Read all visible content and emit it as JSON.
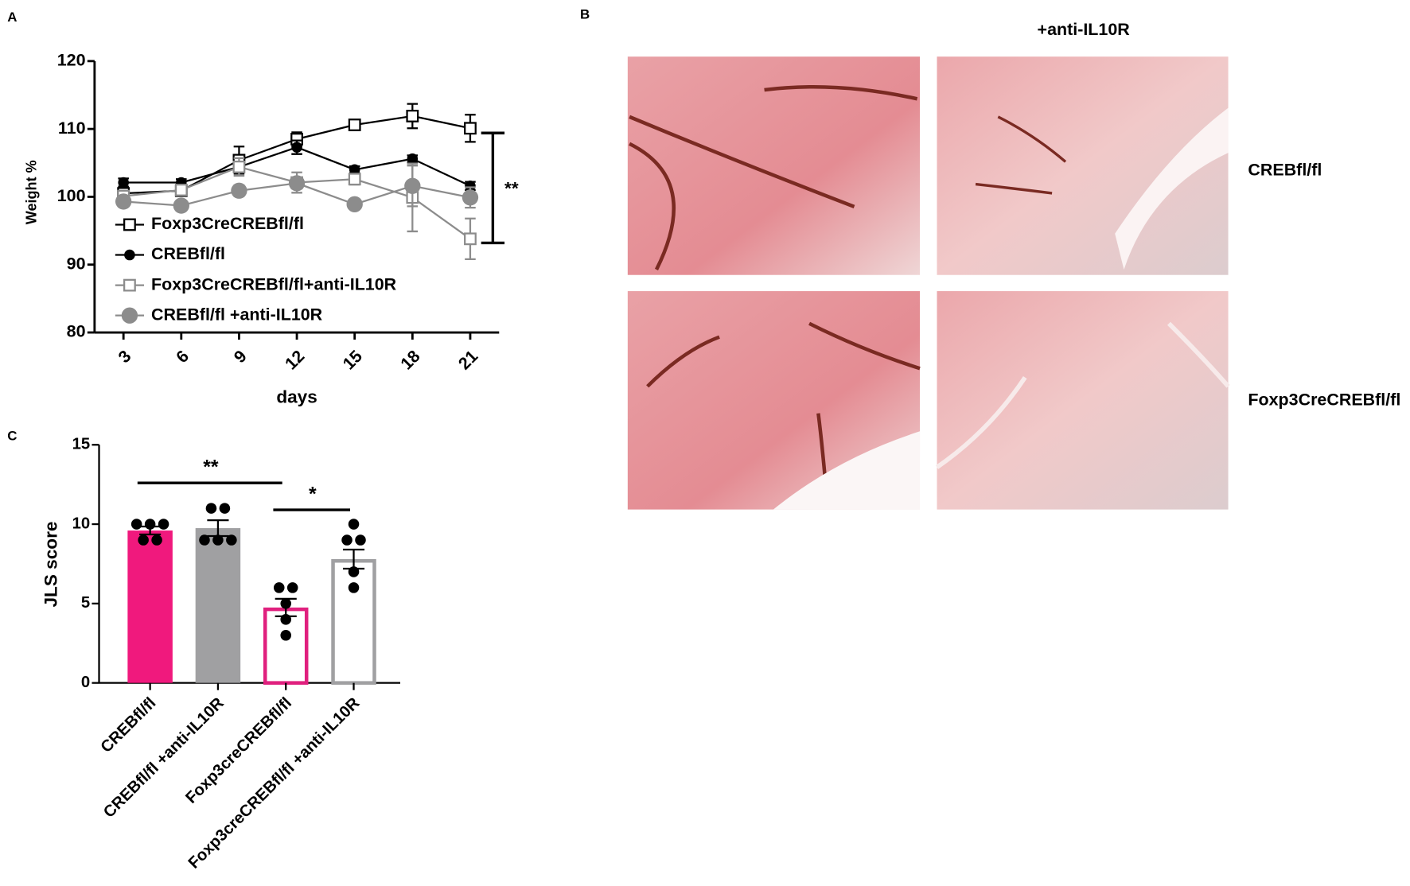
{
  "chart_data": [
    {
      "type": "line",
      "panel": "A",
      "ylabel": "Weight %",
      "xlabel": "days",
      "x": [
        3,
        6,
        9,
        12,
        15,
        18,
        21
      ],
      "xlim": [
        1.5,
        22.5
      ],
      "xticks": [
        3,
        6,
        9,
        12,
        15,
        18,
        21
      ],
      "ylim": [
        80,
        120
      ],
      "yticks": [
        80,
        90,
        100,
        110,
        120
      ],
      "legend": "lower left",
      "series": [
        {
          "name": "Foxp3CreCREBfl/fl",
          "color": "#000000",
          "marker": "open-square",
          "values": [
            100.5,
            100.9,
            105.4,
            108.5,
            110.6,
            111.9,
            110.1
          ],
          "errors": [
            0.5,
            0.6,
            2,
            1,
            0.6,
            1.8,
            2
          ]
        },
        {
          "name": "CREBfl/fl",
          "color": "#000000",
          "marker": "filled-circle",
          "values": [
            102.1,
            102.1,
            104.4,
            107.3,
            104.0,
            105.6,
            101.6
          ],
          "errors": [
            0.6,
            0.5,
            0.8,
            1,
            0.5,
            0.5,
            0.6
          ]
        },
        {
          "name": "Foxp3CreCREBfl/fl+anti-IL10R",
          "color": "#8c8c8c",
          "marker": "open-square",
          "values": [
            100.1,
            101.0,
            104.4,
            102.1,
            102.6,
            99.9,
            93.8
          ],
          "errors": [
            0.5,
            0.6,
            1.3,
            1.5,
            0.8,
            5,
            3
          ]
        },
        {
          "name": "CREBfl/fl +anti-IL10R",
          "color": "#8c8c8c",
          "marker": "big-filled-circle",
          "values": [
            99.3,
            98.7,
            100.9,
            102.0,
            98.9,
            101.6,
            99.9
          ],
          "errors": [
            0.5,
            0.5,
            0.8,
            0.8,
            0.5,
            3,
            1.5
          ]
        }
      ],
      "annotation": {
        "text": "**",
        "range": [
          109.4,
          93.2
        ]
      }
    },
    {
      "type": "bar",
      "panel": "C",
      "ylabel": "JLS score",
      "categories": [
        "CREBfl/fl",
        "CREBfl/fl +anti-IL10R",
        "Foxp3creCREBfl/fl",
        "Foxp3creCREBfl/fl +anti-IL10R"
      ],
      "values": [
        9.6,
        9.75,
        4.75,
        7.8
      ],
      "errors": [
        0.25,
        0.5,
        0.55,
        0.6
      ],
      "colors": [
        "#f0197d",
        "#a0a0a2",
        "#e0207e",
        "#a0a0a2"
      ],
      "filled": [
        true,
        true,
        false,
        false
      ],
      "points": [
        [
          10,
          10,
          10,
          9,
          9
        ],
        [
          11,
          11,
          9,
          9,
          9
        ],
        [
          6,
          6,
          5,
          4,
          3
        ],
        [
          10,
          9,
          9,
          7,
          6
        ]
      ],
      "ylim": [
        0,
        15
      ],
      "yticks": [
        0,
        5,
        10,
        15
      ],
      "significance": [
        {
          "text": "**",
          "from": 0,
          "to": 2,
          "y": 12.6
        },
        {
          "text": "*",
          "from": 2,
          "to": 3,
          "y": 10.9
        }
      ]
    }
  ],
  "panel_b": {
    "panel": "B",
    "column_title": "+anti-IL10R",
    "row_labels": [
      "CREBfl/fl",
      "Foxp3CreCREBfl/fl"
    ]
  }
}
